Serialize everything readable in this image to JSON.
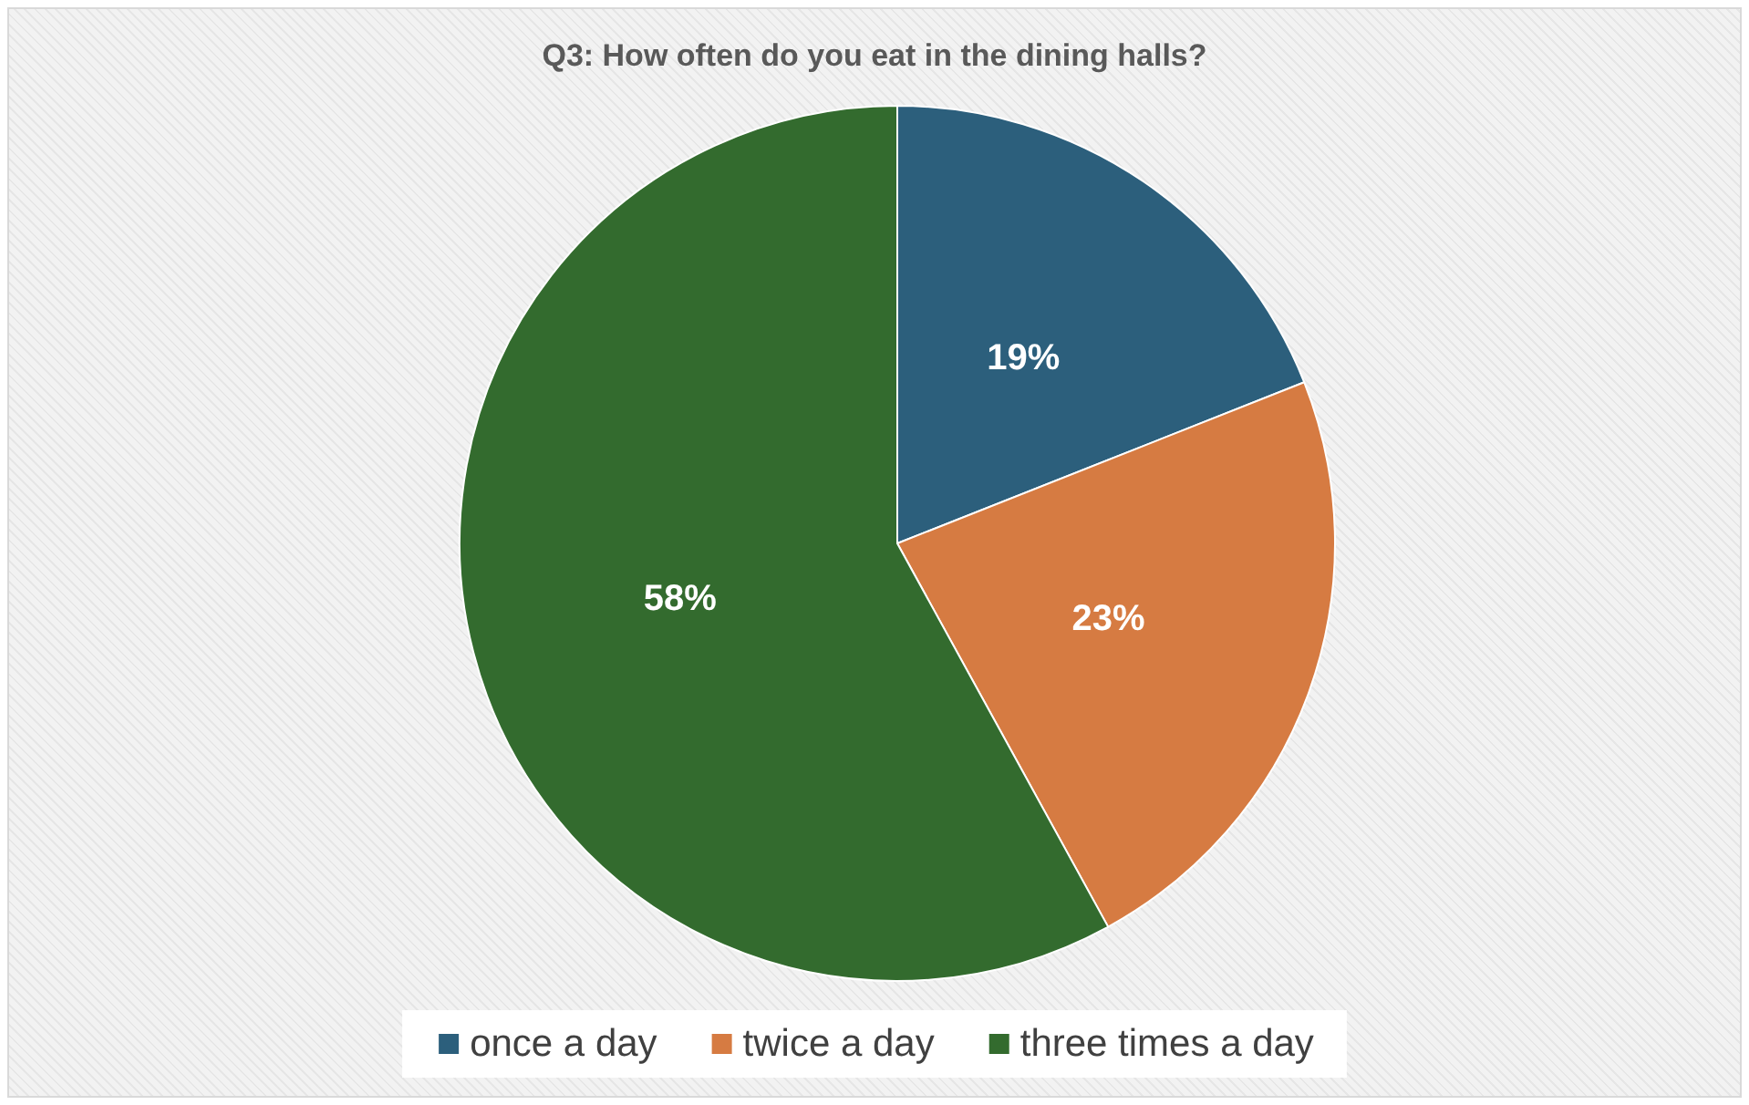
{
  "chart_data": {
    "type": "pie",
    "title": "Q3: How often do you eat in the dining halls?",
    "categories": [
      "once a day",
      "twice a day",
      "three times a day"
    ],
    "values": [
      19,
      23,
      58
    ],
    "colors": [
      "#2c5f7c",
      "#d67b42",
      "#336b2e"
    ],
    "value_labels": [
      "19%",
      "23%",
      "58%"
    ],
    "legend": "bottom"
  }
}
